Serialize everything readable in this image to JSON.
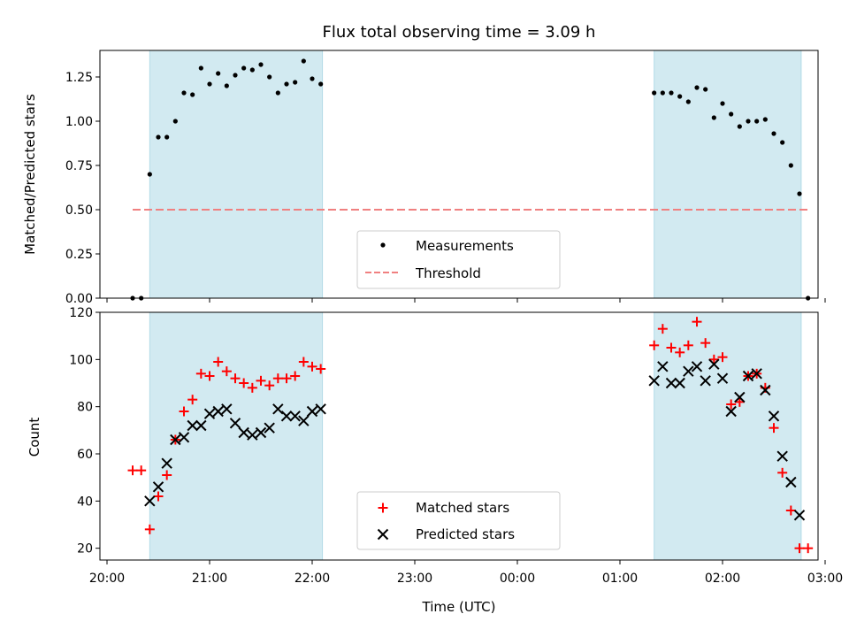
{
  "title": "Flux total observing time = 3.09 h",
  "xlabel": "Time (UTC)",
  "x_ticks": [
    "20:00",
    "21:00",
    "22:00",
    "23:00",
    "00:00",
    "01:00",
    "02:00",
    "03:00"
  ],
  "colors": {
    "shade": "#add8e6",
    "measurements": "#000000",
    "threshold": "#f08080",
    "matched": "#ff0000",
    "predicted": "#000000"
  },
  "chart_data": [
    {
      "type": "scatter",
      "ylabel": "Matched/Predicted stars",
      "xlim": [
        "20:00",
        "03:00"
      ],
      "ylim": [
        0,
        1.4
      ],
      "y_ticks": [
        "0.00",
        "0.25",
        "0.50",
        "0.75",
        "1.00",
        "1.25"
      ],
      "legend_position": "bottom-center",
      "shaded_intervals": [
        [
          "20:25",
          "22:06"
        ],
        [
          "01:20",
          "02:46"
        ]
      ],
      "threshold": {
        "name": "Threshold",
        "value": 0.5,
        "x_range": [
          "20:15",
          "02:50"
        ]
      },
      "series": [
        {
          "name": "Measurements",
          "points": [
            [
              "20:15",
              0.0
            ],
            [
              "20:20",
              0.0
            ],
            [
              "20:25",
              0.7
            ],
            [
              "20:30",
              0.91
            ],
            [
              "20:35",
              0.91
            ],
            [
              "20:40",
              1.0
            ],
            [
              "20:45",
              1.16
            ],
            [
              "20:50",
              1.15
            ],
            [
              "20:55",
              1.3
            ],
            [
              "21:00",
              1.21
            ],
            [
              "21:05",
              1.27
            ],
            [
              "21:10",
              1.2
            ],
            [
              "21:15",
              1.26
            ],
            [
              "21:20",
              1.3
            ],
            [
              "21:25",
              1.29
            ],
            [
              "21:30",
              1.32
            ],
            [
              "21:35",
              1.25
            ],
            [
              "21:40",
              1.16
            ],
            [
              "21:45",
              1.21
            ],
            [
              "21:50",
              1.22
            ],
            [
              "21:55",
              1.34
            ],
            [
              "22:00",
              1.24
            ],
            [
              "22:05",
              1.21
            ],
            [
              "01:20",
              1.16
            ],
            [
              "01:25",
              1.16
            ],
            [
              "01:30",
              1.16
            ],
            [
              "01:35",
              1.14
            ],
            [
              "01:40",
              1.11
            ],
            [
              "01:45",
              1.19
            ],
            [
              "01:50",
              1.18
            ],
            [
              "01:55",
              1.02
            ],
            [
              "02:00",
              1.1
            ],
            [
              "02:05",
              1.04
            ],
            [
              "02:10",
              0.97
            ],
            [
              "02:15",
              1.0
            ],
            [
              "02:20",
              1.0
            ],
            [
              "02:25",
              1.01
            ],
            [
              "02:30",
              0.93
            ],
            [
              "02:35",
              0.88
            ],
            [
              "02:40",
              0.75
            ],
            [
              "02:45",
              0.59
            ],
            [
              "02:50",
              0.0
            ]
          ]
        }
      ]
    },
    {
      "type": "scatter",
      "ylabel": "Count",
      "xlim": [
        "20:00",
        "03:00"
      ],
      "ylim": [
        15,
        120
      ],
      "y_ticks": [
        "20",
        "40",
        "60",
        "80",
        "100",
        "120"
      ],
      "legend_position": "bottom-center",
      "shaded_intervals": [
        [
          "20:25",
          "22:06"
        ],
        [
          "01:20",
          "02:46"
        ]
      ],
      "series": [
        {
          "name": "Matched stars",
          "marker": "plus",
          "points": [
            [
              "20:15",
              53
            ],
            [
              "20:20",
              53
            ],
            [
              "20:25",
              28
            ],
            [
              "20:30",
              42
            ],
            [
              "20:35",
              51
            ],
            [
              "20:40",
              66
            ],
            [
              "20:45",
              78
            ],
            [
              "20:50",
              83
            ],
            [
              "20:55",
              94
            ],
            [
              "21:00",
              93
            ],
            [
              "21:05",
              99
            ],
            [
              "21:10",
              95
            ],
            [
              "21:15",
              92
            ],
            [
              "21:20",
              90
            ],
            [
              "21:25",
              88
            ],
            [
              "21:30",
              91
            ],
            [
              "21:35",
              89
            ],
            [
              "21:40",
              92
            ],
            [
              "21:45",
              92
            ],
            [
              "21:50",
              93
            ],
            [
              "21:55",
              99
            ],
            [
              "22:00",
              97
            ],
            [
              "22:05",
              96
            ],
            [
              "01:20",
              106
            ],
            [
              "01:25",
              113
            ],
            [
              "01:30",
              105
            ],
            [
              "01:35",
              103
            ],
            [
              "01:40",
              106
            ],
            [
              "01:45",
              116
            ],
            [
              "01:50",
              107
            ],
            [
              "01:55",
              100
            ],
            [
              "02:00",
              101
            ],
            [
              "02:05",
              81
            ],
            [
              "02:10",
              82
            ],
            [
              "02:15",
              93
            ],
            [
              "02:20",
              94
            ],
            [
              "02:25",
              88
            ],
            [
              "02:30",
              71
            ],
            [
              "02:35",
              52
            ],
            [
              "02:40",
              36
            ],
            [
              "02:45",
              20
            ],
            [
              "02:50",
              20
            ]
          ]
        },
        {
          "name": "Predicted stars",
          "marker": "x",
          "points": [
            [
              "20:25",
              40
            ],
            [
              "20:30",
              46
            ],
            [
              "20:35",
              56
            ],
            [
              "20:40",
              66
            ],
            [
              "20:45",
              67
            ],
            [
              "20:50",
              72
            ],
            [
              "20:55",
              72
            ],
            [
              "21:00",
              77
            ],
            [
              "21:05",
              78
            ],
            [
              "21:10",
              79
            ],
            [
              "21:15",
              73
            ],
            [
              "21:20",
              69
            ],
            [
              "21:25",
              68
            ],
            [
              "21:30",
              69
            ],
            [
              "21:35",
              71
            ],
            [
              "21:40",
              79
            ],
            [
              "21:45",
              76
            ],
            [
              "21:50",
              76
            ],
            [
              "21:55",
              74
            ],
            [
              "22:00",
              78
            ],
            [
              "22:05",
              79
            ],
            [
              "01:20",
              91
            ],
            [
              "01:25",
              97
            ],
            [
              "01:30",
              90
            ],
            [
              "01:35",
              90
            ],
            [
              "01:40",
              95
            ],
            [
              "01:45",
              97
            ],
            [
              "01:50",
              91
            ],
            [
              "01:55",
              98
            ],
            [
              "02:00",
              92
            ],
            [
              "02:05",
              78
            ],
            [
              "02:10",
              84
            ],
            [
              "02:15",
              93
            ],
            [
              "02:20",
              94
            ],
            [
              "02:25",
              87
            ],
            [
              "02:30",
              76
            ],
            [
              "02:35",
              59
            ],
            [
              "02:40",
              48
            ],
            [
              "02:45",
              34
            ]
          ]
        }
      ]
    }
  ]
}
